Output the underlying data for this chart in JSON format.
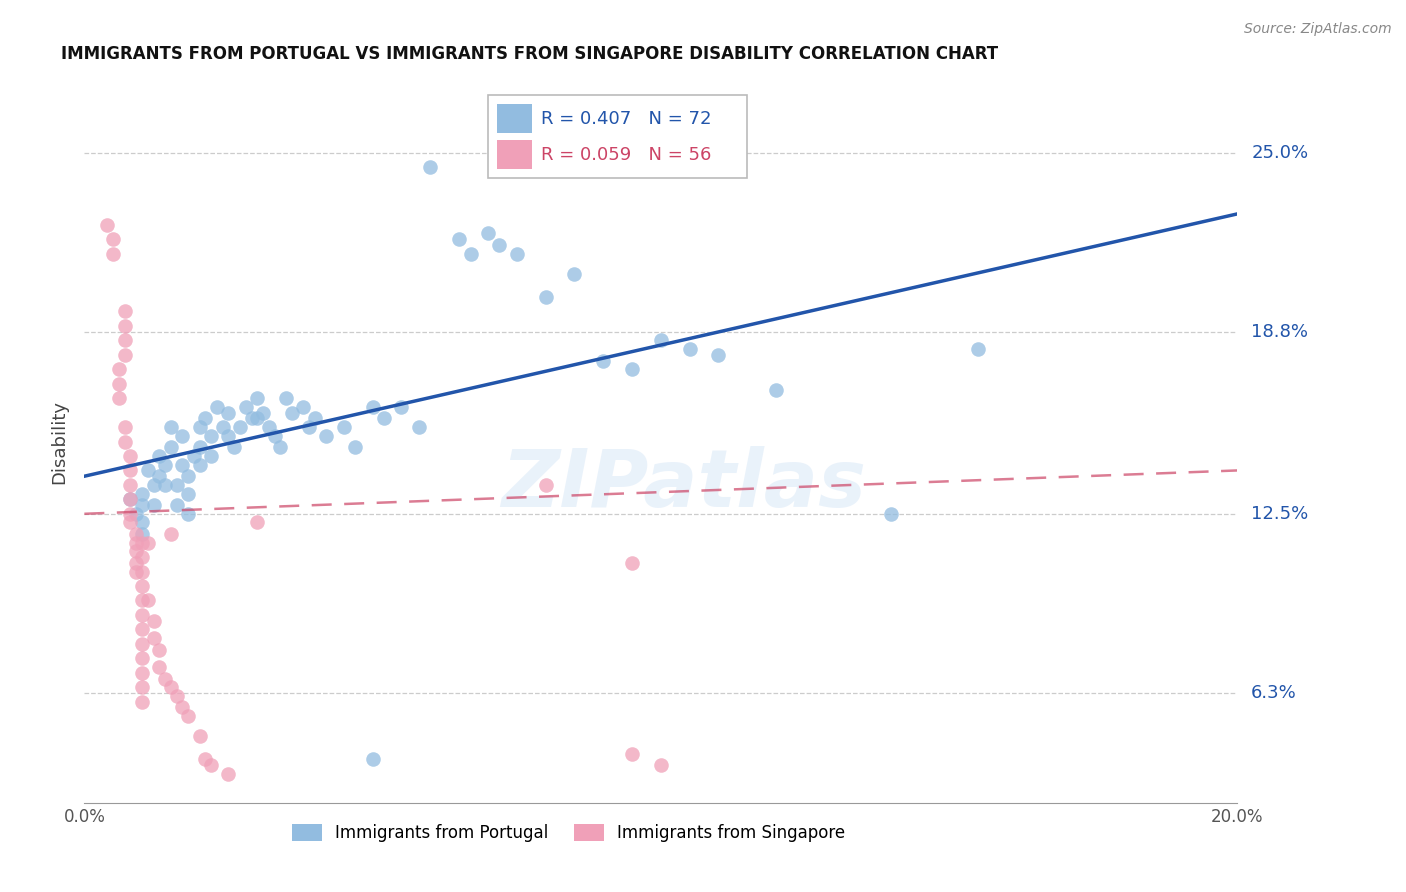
{
  "title": "IMMIGRANTS FROM PORTUGAL VS IMMIGRANTS FROM SINGAPORE DISABILITY CORRELATION CHART",
  "source": "Source: ZipAtlas.com",
  "ylabel": "Disability",
  "ytick_labels": [
    "6.3%",
    "12.5%",
    "18.8%",
    "25.0%"
  ],
  "ytick_values": [
    0.063,
    0.125,
    0.188,
    0.25
  ],
  "xlim": [
    0.0,
    0.2
  ],
  "ylim": [
    0.025,
    0.275
  ],
  "watermark": "ZIPatlas",
  "legend_blue_r": "R = 0.407",
  "legend_blue_n": "N = 72",
  "legend_pink_r": "R = 0.059",
  "legend_pink_n": "N = 56",
  "blue_color": "#92bce0",
  "pink_color": "#f0a0b8",
  "blue_line_color": "#2255aa",
  "pink_line_color": "#cc4466",
  "blue_scatter": [
    [
      0.008,
      0.13
    ],
    [
      0.009,
      0.125
    ],
    [
      0.01,
      0.132
    ],
    [
      0.01,
      0.128
    ],
    [
      0.01,
      0.122
    ],
    [
      0.01,
      0.118
    ],
    [
      0.011,
      0.14
    ],
    [
      0.012,
      0.135
    ],
    [
      0.012,
      0.128
    ],
    [
      0.013,
      0.145
    ],
    [
      0.013,
      0.138
    ],
    [
      0.014,
      0.142
    ],
    [
      0.014,
      0.135
    ],
    [
      0.015,
      0.148
    ],
    [
      0.015,
      0.155
    ],
    [
      0.016,
      0.135
    ],
    [
      0.016,
      0.128
    ],
    [
      0.017,
      0.152
    ],
    [
      0.017,
      0.142
    ],
    [
      0.018,
      0.138
    ],
    [
      0.018,
      0.132
    ],
    [
      0.018,
      0.125
    ],
    [
      0.019,
      0.145
    ],
    [
      0.02,
      0.155
    ],
    [
      0.02,
      0.148
    ],
    [
      0.02,
      0.142
    ],
    [
      0.021,
      0.158
    ],
    [
      0.022,
      0.152
    ],
    [
      0.022,
      0.145
    ],
    [
      0.023,
      0.162
    ],
    [
      0.024,
      0.155
    ],
    [
      0.025,
      0.16
    ],
    [
      0.025,
      0.152
    ],
    [
      0.026,
      0.148
    ],
    [
      0.027,
      0.155
    ],
    [
      0.028,
      0.162
    ],
    [
      0.029,
      0.158
    ],
    [
      0.03,
      0.165
    ],
    [
      0.03,
      0.158
    ],
    [
      0.031,
      0.16
    ],
    [
      0.032,
      0.155
    ],
    [
      0.033,
      0.152
    ],
    [
      0.034,
      0.148
    ],
    [
      0.035,
      0.165
    ],
    [
      0.036,
      0.16
    ],
    [
      0.038,
      0.162
    ],
    [
      0.039,
      0.155
    ],
    [
      0.04,
      0.158
    ],
    [
      0.042,
      0.152
    ],
    [
      0.045,
      0.155
    ],
    [
      0.047,
      0.148
    ],
    [
      0.05,
      0.162
    ],
    [
      0.052,
      0.158
    ],
    [
      0.055,
      0.162
    ],
    [
      0.058,
      0.155
    ],
    [
      0.06,
      0.245
    ],
    [
      0.065,
      0.22
    ],
    [
      0.067,
      0.215
    ],
    [
      0.07,
      0.222
    ],
    [
      0.072,
      0.218
    ],
    [
      0.075,
      0.215
    ],
    [
      0.08,
      0.2
    ],
    [
      0.085,
      0.208
    ],
    [
      0.09,
      0.178
    ],
    [
      0.095,
      0.175
    ],
    [
      0.1,
      0.185
    ],
    [
      0.105,
      0.182
    ],
    [
      0.11,
      0.18
    ],
    [
      0.12,
      0.168
    ],
    [
      0.14,
      0.125
    ],
    [
      0.155,
      0.182
    ],
    [
      0.05,
      0.04
    ]
  ],
  "pink_scatter": [
    [
      0.004,
      0.225
    ],
    [
      0.005,
      0.22
    ],
    [
      0.005,
      0.215
    ],
    [
      0.006,
      0.175
    ],
    [
      0.006,
      0.17
    ],
    [
      0.006,
      0.165
    ],
    [
      0.007,
      0.195
    ],
    [
      0.007,
      0.19
    ],
    [
      0.007,
      0.185
    ],
    [
      0.007,
      0.18
    ],
    [
      0.007,
      0.155
    ],
    [
      0.007,
      0.15
    ],
    [
      0.008,
      0.145
    ],
    [
      0.008,
      0.14
    ],
    [
      0.008,
      0.135
    ],
    [
      0.008,
      0.13
    ],
    [
      0.008,
      0.125
    ],
    [
      0.008,
      0.122
    ],
    [
      0.009,
      0.118
    ],
    [
      0.009,
      0.115
    ],
    [
      0.009,
      0.112
    ],
    [
      0.009,
      0.108
    ],
    [
      0.009,
      0.105
    ],
    [
      0.01,
      0.115
    ],
    [
      0.01,
      0.11
    ],
    [
      0.01,
      0.105
    ],
    [
      0.01,
      0.1
    ],
    [
      0.01,
      0.095
    ],
    [
      0.01,
      0.09
    ],
    [
      0.01,
      0.085
    ],
    [
      0.01,
      0.08
    ],
    [
      0.01,
      0.075
    ],
    [
      0.01,
      0.07
    ],
    [
      0.01,
      0.065
    ],
    [
      0.01,
      0.06
    ],
    [
      0.011,
      0.115
    ],
    [
      0.011,
      0.095
    ],
    [
      0.012,
      0.088
    ],
    [
      0.012,
      0.082
    ],
    [
      0.013,
      0.078
    ],
    [
      0.013,
      0.072
    ],
    [
      0.014,
      0.068
    ],
    [
      0.015,
      0.118
    ],
    [
      0.015,
      0.065
    ],
    [
      0.016,
      0.062
    ],
    [
      0.017,
      0.058
    ],
    [
      0.018,
      0.055
    ],
    [
      0.02,
      0.048
    ],
    [
      0.021,
      0.04
    ],
    [
      0.022,
      0.038
    ],
    [
      0.025,
      0.035
    ],
    [
      0.03,
      0.122
    ],
    [
      0.08,
      0.135
    ],
    [
      0.095,
      0.108
    ],
    [
      0.095,
      0.042
    ],
    [
      0.1,
      0.038
    ]
  ]
}
